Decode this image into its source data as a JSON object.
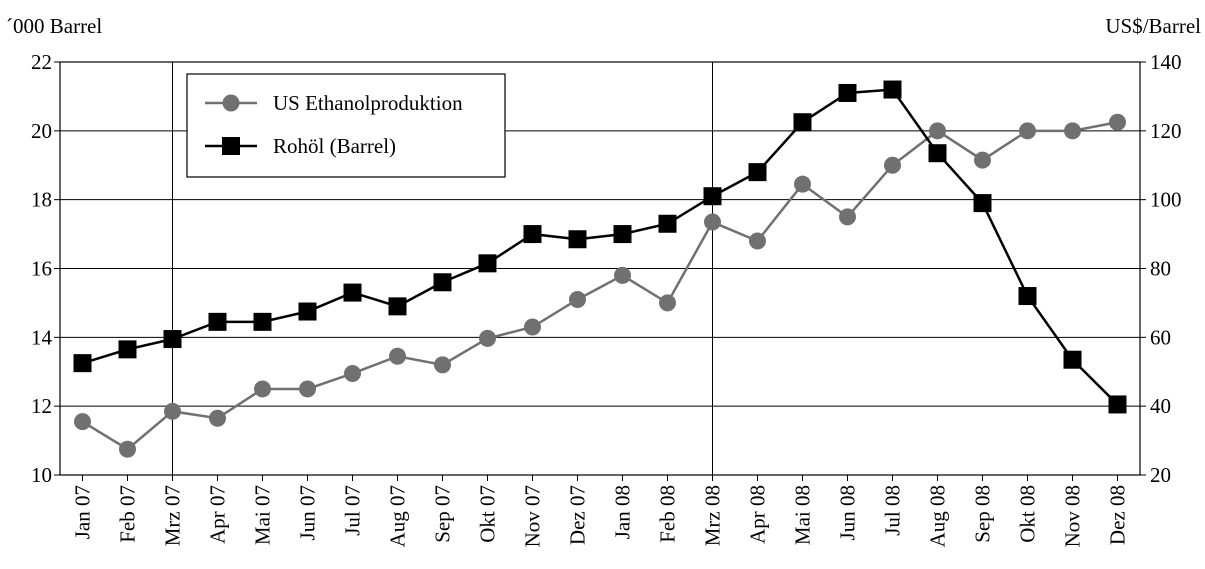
{
  "chart_data": {
    "type": "line",
    "ylabel_left": "´000 Barrel",
    "ylabel_right": "US$/Barrel",
    "categories": [
      "Jan 07",
      "Feb 07",
      "Mrz 07",
      "Apr 07",
      "Mai 07",
      "Jun 07",
      "Jul 07",
      "Aug 07",
      "Sep 07",
      "Okt 07",
      "Nov 07",
      "Dez 07",
      "Jan 08",
      "Feb 08",
      "Mrz 08",
      "Apr 08",
      "Mai 08",
      "Jun 08",
      "Jul 08",
      "Aug 08",
      "Sep 08",
      "Okt 08",
      "Nov 08",
      "Dez 08"
    ],
    "ylim_left": [
      10,
      22
    ],
    "yticks_left": [
      10,
      12,
      14,
      16,
      18,
      20,
      22
    ],
    "ylim_right": [
      20,
      140
    ],
    "yticks_right": [
      20,
      40,
      60,
      80,
      100,
      120,
      140
    ],
    "vertical_lines_at": [
      "Mrz 07",
      "Mrz 08"
    ],
    "grid": "horizontal",
    "legend_position": "top-left",
    "series": [
      {
        "name": "US Ethanolproduktion",
        "axis": "left",
        "color": "#707070",
        "marker": "circle",
        "values": [
          11.55,
          10.75,
          11.85,
          11.65,
          12.5,
          12.5,
          12.95,
          13.45,
          13.2,
          13.97,
          14.3,
          15.1,
          15.8,
          15.0,
          17.35,
          16.8,
          18.45,
          17.5,
          19.0,
          20.0,
          19.15,
          20.0,
          20.0,
          20.25
        ]
      },
      {
        "name": "Rohöl (Barrel)",
        "axis": "right",
        "color": "#000000",
        "marker": "square",
        "values": [
          52.5,
          56.5,
          59.5,
          64.5,
          64.5,
          67.5,
          73,
          69,
          76,
          81.5,
          90,
          88.5,
          90,
          93,
          101,
          108,
          122.5,
          131,
          132,
          113.5,
          99,
          72,
          53.5,
          40.5
        ]
      }
    ]
  }
}
